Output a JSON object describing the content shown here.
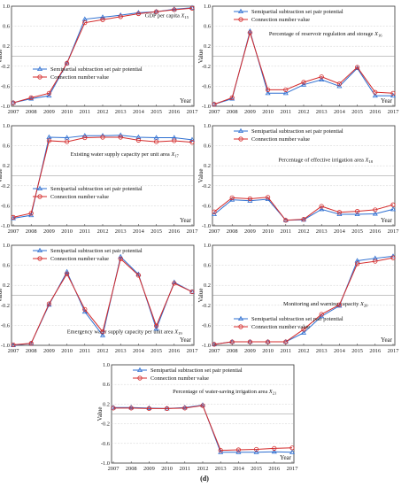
{
  "figure": {
    "caption": "(d)"
  },
  "legend": {
    "series_a": "Semipartial subtraction set pair potential",
    "series_b": "Connection number value"
  },
  "colors": {
    "series_a": "#2e6fd1",
    "series_b": "#d42a2a",
    "axis": "#333333",
    "grid": "#cfcfcf"
  },
  "chart_data": [
    {
      "type": "line",
      "title": "GDP per capita",
      "var": "X",
      "sub": "15",
      "xlabel": "Year",
      "ylabel": "Value",
      "ylim": [
        -1,
        1
      ],
      "yticks": [
        "1.0",
        "0.6",
        "0.2",
        "-0.2",
        "-0.6",
        "-1.0"
      ],
      "x": [
        "2007",
        "2008",
        "2009",
        "2010",
        "2011",
        "2012",
        "2013",
        "2014",
        "2015",
        "2016",
        "2017"
      ],
      "series": [
        {
          "name": "Semipartial subtraction set pair potential",
          "values": [
            -0.93,
            -0.85,
            -0.79,
            -0.14,
            0.74,
            0.78,
            0.82,
            0.87,
            0.89,
            0.94,
            0.97
          ]
        },
        {
          "name": "Connection number value",
          "values": [
            -0.93,
            -0.83,
            -0.74,
            -0.14,
            0.67,
            0.73,
            0.79,
            0.85,
            0.89,
            0.93,
            0.96
          ]
        }
      ]
    },
    {
      "type": "line",
      "title": "Percentage of reservoir regulation and storage",
      "var": "X",
      "sub": "16",
      "xlabel": "Year",
      "ylabel": "Value",
      "ylim": [
        -1,
        1
      ],
      "yticks": [
        "1.0",
        "0.6",
        "0.2",
        "-0.2",
        "-0.6",
        "-1.0"
      ],
      "x": [
        "2007",
        "2008",
        "2009",
        "2010",
        "2011",
        "2012",
        "2013",
        "2014",
        "2015",
        "2016",
        "2017"
      ],
      "series": [
        {
          "name": "Semipartial subtraction set pair potential",
          "values": [
            -0.96,
            -0.85,
            0.5,
            -0.74,
            -0.74,
            -0.57,
            -0.47,
            -0.6,
            -0.24,
            -0.79,
            -0.79
          ]
        },
        {
          "name": "Connection number value",
          "values": [
            -0.96,
            -0.83,
            0.47,
            -0.67,
            -0.67,
            -0.52,
            -0.41,
            -0.55,
            -0.22,
            -0.72,
            -0.74
          ]
        }
      ]
    },
    {
      "type": "line",
      "title": "Existing water supply capacity per unit area",
      "var": "X",
      "sub": "17",
      "xlabel": "Year",
      "ylabel": "Value",
      "ylim": [
        -1,
        1
      ],
      "yticks": [
        "1.0",
        "0.6",
        "0.2",
        "-0.2",
        "-0.6",
        "-1.0"
      ],
      "x": [
        "2007",
        "2008",
        "2009",
        "2010",
        "2011",
        "2012",
        "2013",
        "2014",
        "2015",
        "2016",
        "2017"
      ],
      "series": [
        {
          "name": "Semipartial subtraction set pair potential",
          "values": [
            -0.85,
            -0.79,
            0.77,
            0.76,
            0.8,
            0.8,
            0.81,
            0.77,
            0.76,
            0.76,
            0.72
          ]
        },
        {
          "name": "Connection number value",
          "values": [
            -0.83,
            -0.75,
            0.7,
            0.68,
            0.76,
            0.77,
            0.77,
            0.71,
            0.68,
            0.7,
            0.67
          ]
        }
      ]
    },
    {
      "type": "line",
      "title": "Percentage of effective irrigation area",
      "var": "X",
      "sub": "18",
      "xlabel": "Year",
      "ylabel": "Value",
      "ylim": [
        -1,
        1
      ],
      "yticks": [
        "1.0",
        "0.6",
        "0.2",
        "-0.2",
        "-0.6",
        "-1.0"
      ],
      "x": [
        "2007",
        "2008",
        "2009",
        "2010",
        "2011",
        "2012",
        "2013",
        "2014",
        "2015",
        "2016",
        "2017"
      ],
      "series": [
        {
          "name": "Semipartial subtraction set pair potential",
          "values": [
            -0.77,
            -0.48,
            -0.5,
            -0.47,
            -0.89,
            -0.88,
            -0.67,
            -0.77,
            -0.77,
            -0.76,
            -0.67
          ]
        },
        {
          "name": "Connection number value",
          "values": [
            -0.72,
            -0.44,
            -0.46,
            -0.43,
            -0.89,
            -0.87,
            -0.61,
            -0.73,
            -0.71,
            -0.68,
            -0.58
          ]
        }
      ]
    },
    {
      "type": "line",
      "title": "Emergency water supply capacity per unit area",
      "var": "X",
      "sub": "19",
      "xlabel": "Year",
      "ylabel": "Value",
      "ylim": [
        -1,
        1
      ],
      "yticks": [
        "1.0",
        "0.6",
        "0.2",
        "-0.2",
        "-0.6",
        "-1.0"
      ],
      "x": [
        "2007",
        "2008",
        "2009",
        "2010",
        "2011",
        "2012",
        "2013",
        "2014",
        "2015",
        "2016",
        "2017"
      ],
      "series": [
        {
          "name": "Semipartial subtraction set pair potential",
          "values": [
            -1.0,
            -0.96,
            -0.19,
            0.47,
            -0.33,
            -0.8,
            0.77,
            0.42,
            -0.67,
            0.26,
            0.07
          ]
        },
        {
          "name": "Connection number value",
          "values": [
            -0.99,
            -0.96,
            -0.17,
            0.43,
            -0.28,
            -0.73,
            0.73,
            0.4,
            -0.61,
            0.24,
            0.07
          ]
        }
      ]
    },
    {
      "type": "line",
      "title": "Monitoring and warning capacity",
      "var": "X",
      "sub": "20",
      "xlabel": "Year",
      "ylabel": "Value",
      "ylim": [
        -1,
        1
      ],
      "yticks": [
        "1.0",
        "0.6",
        "0.2",
        "-0.2",
        "-0.6",
        "-1.0"
      ],
      "x": [
        "2007",
        "2008",
        "2009",
        "2010",
        "2011",
        "2012",
        "2013",
        "2014",
        "2015",
        "2016",
        "2017"
      ],
      "series": [
        {
          "name": "Semipartial subtraction set pair potential",
          "values": [
            -0.98,
            -0.93,
            -0.93,
            -0.93,
            -0.93,
            -0.75,
            -0.42,
            -0.21,
            0.69,
            0.74,
            0.78
          ]
        },
        {
          "name": "Connection number value",
          "values": [
            -0.98,
            -0.93,
            -0.93,
            -0.93,
            -0.93,
            -0.68,
            -0.38,
            -0.19,
            0.63,
            0.68,
            0.75
          ]
        }
      ]
    },
    {
      "type": "line",
      "title": "Percentage of water-saving irrigation area",
      "var": "X",
      "sub": "21",
      "xlabel": "Year",
      "ylabel": "Value",
      "ylim": [
        -1,
        1
      ],
      "yticks": [
        "1.0",
        "0.6",
        "0.2",
        "-0.2",
        "-0.6",
        "-1.0"
      ],
      "x": [
        "2007",
        "2008",
        "2009",
        "2010",
        "2011",
        "2012",
        "2013",
        "2014",
        "2015",
        "2016",
        "2017"
      ],
      "series": [
        {
          "name": "Semipartial subtraction set pair potential",
          "values": [
            0.13,
            0.13,
            0.12,
            0.11,
            0.13,
            0.18,
            -0.78,
            -0.78,
            -0.78,
            -0.77,
            -0.78
          ]
        },
        {
          "name": "Connection number value",
          "values": [
            0.12,
            0.12,
            0.11,
            0.11,
            0.12,
            0.17,
            -0.74,
            -0.73,
            -0.72,
            -0.7,
            -0.69
          ]
        }
      ]
    }
  ]
}
